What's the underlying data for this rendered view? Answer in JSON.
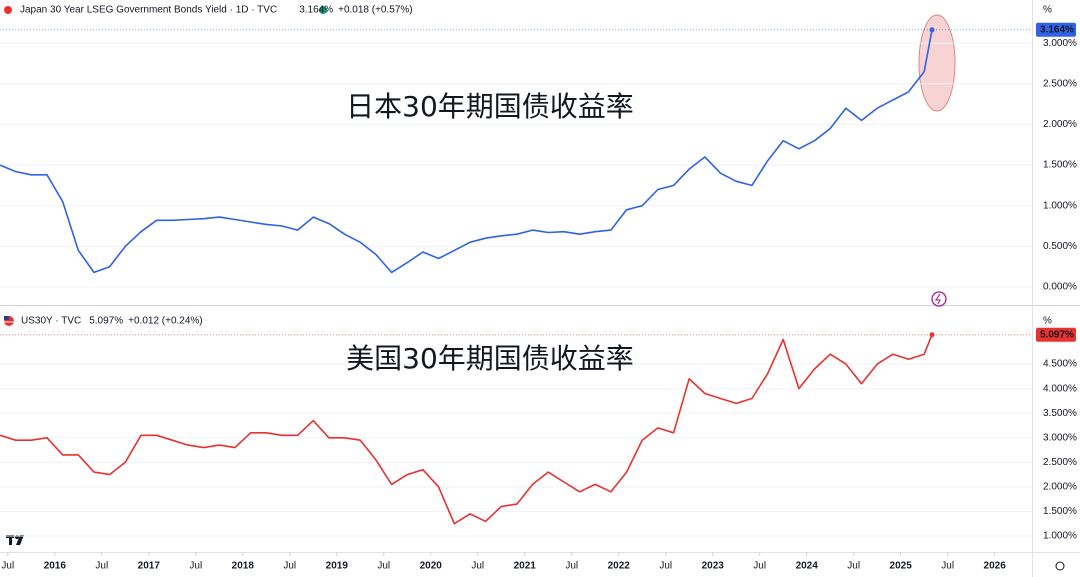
{
  "chart_data": [
    {
      "type": "line",
      "title": "Japan 30 Year LSEG Government Bonds Yield · 1D · TVC",
      "last": "3.164%",
      "change": "+0.018 (+0.57%)",
      "annotation": "日本30年期国债收益率",
      "unit": "%",
      "x": [
        "2015-06",
        "2015-08",
        "2015-10",
        "2015-12",
        "2016-02",
        "2016-04",
        "2016-06",
        "2016-08",
        "2016-10",
        "2016-12",
        "2017-02",
        "2017-04",
        "2017-06",
        "2017-08",
        "2017-10",
        "2017-12",
        "2018-02",
        "2018-04",
        "2018-06",
        "2018-08",
        "2018-10",
        "2018-12",
        "2019-02",
        "2019-04",
        "2019-06",
        "2019-08",
        "2019-10",
        "2019-12",
        "2020-02",
        "2020-04",
        "2020-06",
        "2020-08",
        "2020-10",
        "2020-12",
        "2021-02",
        "2021-04",
        "2021-06",
        "2021-08",
        "2021-10",
        "2021-12",
        "2022-02",
        "2022-04",
        "2022-06",
        "2022-08",
        "2022-10",
        "2022-12",
        "2023-02",
        "2023-04",
        "2023-06",
        "2023-08",
        "2023-10",
        "2023-12",
        "2024-02",
        "2024-04",
        "2024-06",
        "2024-08",
        "2024-10",
        "2024-12",
        "2025-02",
        "2025-04",
        "2025-05"
      ],
      "series": [
        {
          "name": "Japan 30 Year",
          "color": "#2f62e8",
          "values": [
            1.5,
            1.42,
            1.38,
            1.38,
            1.05,
            0.45,
            0.18,
            0.25,
            0.5,
            0.68,
            0.82,
            0.82,
            0.83,
            0.84,
            0.86,
            0.83,
            0.8,
            0.77,
            0.75,
            0.7,
            0.86,
            0.78,
            0.65,
            0.55,
            0.4,
            0.18,
            0.3,
            0.43,
            0.35,
            0.45,
            0.55,
            0.6,
            0.63,
            0.65,
            0.7,
            0.67,
            0.68,
            0.65,
            0.68,
            0.7,
            0.95,
            1.0,
            1.2,
            1.25,
            1.45,
            1.6,
            1.4,
            1.3,
            1.25,
            1.55,
            1.8,
            1.7,
            1.8,
            1.95,
            2.2,
            2.05,
            2.2,
            2.3,
            2.4,
            2.65,
            3.164
          ],
          "value_labels": [
            null,
            null,
            null,
            null,
            null,
            null,
            null,
            null,
            null,
            null,
            null,
            null,
            null,
            null,
            null,
            null,
            null,
            null,
            null,
            null,
            null,
            null,
            null,
            null,
            null,
            null,
            null,
            null,
            null,
            null,
            null,
            null,
            null,
            null,
            null,
            null,
            null,
            null,
            null,
            null,
            null,
            null,
            null,
            null,
            null,
            null,
            null,
            null,
            null,
            null,
            null,
            null,
            null,
            null,
            null,
            null,
            null,
            null,
            null,
            null,
            "3.164%"
          ]
        }
      ],
      "xlim": [
        "2015-06",
        "2026-05"
      ],
      "ylim": [
        -0.16,
        3.26
      ],
      "yticks": [
        {
          "value": 0,
          "label": "0.000%"
        },
        {
          "value": 0.5,
          "label": "0.500%"
        },
        {
          "value": 1,
          "label": "1.000%"
        },
        {
          "value": 1.5,
          "label": "1.500%"
        },
        {
          "value": 2,
          "label": "2.000%"
        },
        {
          "value": 2.5,
          "label": "2.500%"
        },
        {
          "value": 3,
          "label": "3.000%"
        }
      ],
      "grid": true
    },
    {
      "type": "line",
      "title": "US30Y · TVC",
      "last": "5.097%",
      "change": "+0.012 (+0.24%)",
      "annotation": "美国30年期国债收益率",
      "unit": "%",
      "x": [
        "2015-06",
        "2015-08",
        "2015-10",
        "2015-12",
        "2016-02",
        "2016-04",
        "2016-06",
        "2016-08",
        "2016-10",
        "2016-12",
        "2017-02",
        "2017-04",
        "2017-06",
        "2017-08",
        "2017-10",
        "2017-12",
        "2018-02",
        "2018-04",
        "2018-06",
        "2018-08",
        "2018-10",
        "2018-12",
        "2019-02",
        "2019-04",
        "2019-06",
        "2019-08",
        "2019-10",
        "2019-12",
        "2020-02",
        "2020-04",
        "2020-06",
        "2020-08",
        "2020-10",
        "2020-12",
        "2021-02",
        "2021-04",
        "2021-06",
        "2021-08",
        "2021-10",
        "2021-12",
        "2022-02",
        "2022-04",
        "2022-06",
        "2022-08",
        "2022-10",
        "2022-12",
        "2023-02",
        "2023-04",
        "2023-06",
        "2023-08",
        "2023-10",
        "2023-12",
        "2024-02",
        "2024-04",
        "2024-06",
        "2024-08",
        "2024-10",
        "2024-12",
        "2025-02",
        "2025-04",
        "2025-05"
      ],
      "series": [
        {
          "name": "US30Y",
          "color": "#e8322f",
          "values": [
            3.05,
            2.95,
            2.95,
            3.0,
            2.65,
            2.65,
            2.3,
            2.25,
            2.5,
            3.05,
            3.05,
            2.95,
            2.85,
            2.8,
            2.85,
            2.8,
            3.1,
            3.1,
            3.05,
            3.05,
            3.35,
            3.0,
            3.0,
            2.95,
            2.55,
            2.05,
            2.25,
            2.35,
            2.0,
            1.25,
            1.45,
            1.3,
            1.6,
            1.65,
            2.05,
            2.3,
            2.1,
            1.9,
            2.05,
            1.9,
            2.3,
            2.95,
            3.2,
            3.1,
            4.2,
            3.9,
            3.8,
            3.7,
            3.8,
            4.3,
            5.0,
            4.0,
            4.4,
            4.7,
            4.5,
            4.1,
            4.5,
            4.7,
            4.6,
            4.7,
            5.097
          ],
          "value_labels": [
            null,
            null,
            null,
            null,
            null,
            null,
            null,
            null,
            null,
            null,
            null,
            null,
            null,
            null,
            null,
            null,
            null,
            null,
            null,
            null,
            null,
            null,
            null,
            null,
            null,
            null,
            null,
            null,
            null,
            null,
            null,
            null,
            null,
            null,
            null,
            null,
            null,
            null,
            null,
            null,
            null,
            null,
            null,
            null,
            null,
            null,
            null,
            null,
            null,
            null,
            null,
            null,
            null,
            null,
            null,
            null,
            null,
            null,
            null,
            null,
            "5.097%"
          ]
        }
      ],
      "xlim": [
        "2015-06",
        "2026-05"
      ],
      "ylim": [
        0.715,
        5.56
      ],
      "yticks": [
        {
          "value": 1,
          "label": "1.000%"
        },
        {
          "value": 1.5,
          "label": "1.500%"
        },
        {
          "value": 2,
          "label": "2.000%"
        },
        {
          "value": 2.5,
          "label": "2.500%"
        },
        {
          "value": 3,
          "label": "3.000%"
        },
        {
          "value": 3.5,
          "label": "3.500%"
        },
        {
          "value": 4,
          "label": "4.000%"
        },
        {
          "value": 4.5,
          "label": "4.500%"
        }
      ],
      "xticks": [
        {
          "value": "2015-07",
          "label": "Jul"
        },
        {
          "value": "2016-01",
          "label": "2016"
        },
        {
          "value": "2016-07",
          "label": "Jul"
        },
        {
          "value": "2017-01",
          "label": "2017"
        },
        {
          "value": "2017-07",
          "label": "Jul"
        },
        {
          "value": "2018-01",
          "label": "2018"
        },
        {
          "value": "2018-07",
          "label": "Jul"
        },
        {
          "value": "2019-01",
          "label": "2019"
        },
        {
          "value": "2019-07",
          "label": "Jul"
        },
        {
          "value": "2020-01",
          "label": "2020"
        },
        {
          "value": "2020-07",
          "label": "Jul"
        },
        {
          "value": "2021-01",
          "label": "2021"
        },
        {
          "value": "2021-07",
          "label": "Jul"
        },
        {
          "value": "2022-01",
          "label": "2022"
        },
        {
          "value": "2022-07",
          "label": "Jul"
        },
        {
          "value": "2023-01",
          "label": "2023"
        },
        {
          "value": "2023-07",
          "label": "Jul"
        },
        {
          "value": "2024-01",
          "label": "2024"
        },
        {
          "value": "2024-07",
          "label": "Jul"
        },
        {
          "value": "2025-01",
          "label": "2025"
        },
        {
          "value": "2025-07",
          "label": "Jul"
        },
        {
          "value": "2026-01",
          "label": "2026"
        }
      ],
      "grid": true
    }
  ]
}
